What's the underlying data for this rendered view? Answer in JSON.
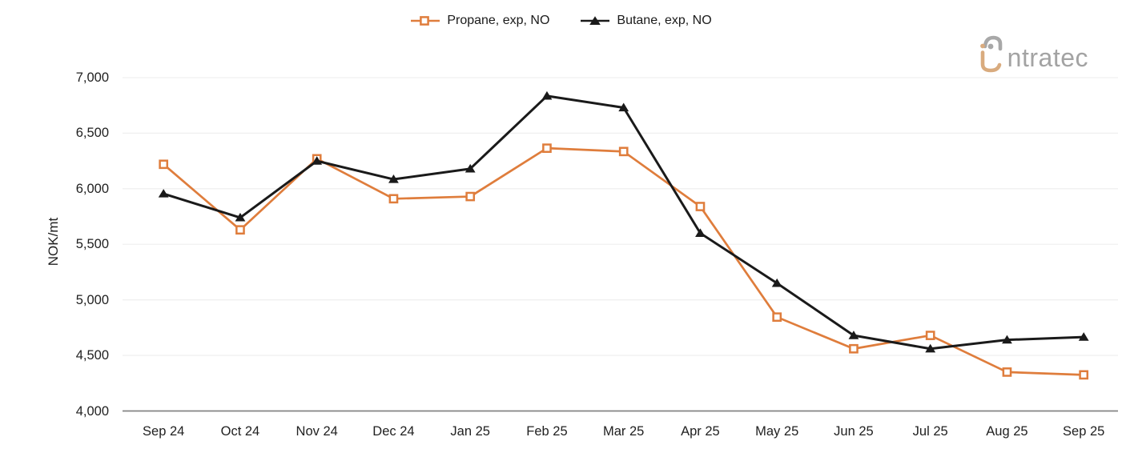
{
  "logo": {
    "brand": "intratec",
    "wordmark_rest": "ntratec",
    "gray": "#a8a8a8",
    "tan": "#d9ab7e"
  },
  "chart_data": {
    "type": "line",
    "title": "",
    "ylabel": "NOK/mt",
    "xlabel": "",
    "ylim": [
      4000,
      7000
    ],
    "grid": "horizontal",
    "gridline_color": "#f0f0f0",
    "axis_line_color": "#848484",
    "legend_position": "top-center",
    "yticks": [
      {
        "value": 4000,
        "label": "4,000"
      },
      {
        "value": 4500,
        "label": "4,500"
      },
      {
        "value": 5000,
        "label": "5,000"
      },
      {
        "value": 5500,
        "label": "5,500"
      },
      {
        "value": 6000,
        "label": "6,000"
      },
      {
        "value": 6500,
        "label": "6,500"
      },
      {
        "value": 7000,
        "label": "7,000"
      }
    ],
    "categories": [
      "Sep 24",
      "Oct 24",
      "Nov 24",
      "Dec 24",
      "Jan 25",
      "Feb 25",
      "Mar 25",
      "Apr 25",
      "May 25",
      "Jun 25",
      "Jul 25",
      "Aug 25",
      "Sep 25"
    ],
    "series": [
      {
        "name": "Propane, exp, NO",
        "color": "#df7d3c",
        "marker": "open-square",
        "values": [
          6220,
          5630,
          6270,
          5910,
          5930,
          6365,
          6335,
          5840,
          4845,
          4560,
          4680,
          4350,
          4325
        ]
      },
      {
        "name": "Butane, exp, NO",
        "color": "#1a1a1a",
        "marker": "filled-triangle",
        "values": [
          5955,
          5740,
          6250,
          6085,
          6180,
          6835,
          6730,
          5600,
          5150,
          4680,
          4560,
          4640,
          4665
        ]
      }
    ]
  }
}
